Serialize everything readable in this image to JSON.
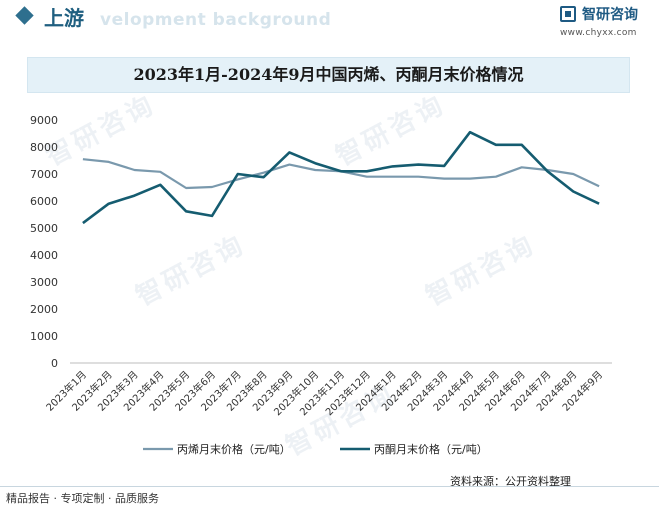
{
  "header": {
    "title": "上游",
    "bg_text": "velopment background"
  },
  "logo": {
    "name": "智研咨询",
    "url": "www.chyxx.com"
  },
  "watermark_text": "智研咨询",
  "chart_data": {
    "type": "line",
    "title": "2023年1月-2024年9月中国丙烯、丙酮月末价格情况",
    "categories": [
      "2023年1月",
      "2023年2月",
      "2023年3月",
      "2023年4月",
      "2023年5月",
      "2023年6月",
      "2023年7月",
      "2023年8月",
      "2023年9月",
      "2023年10月",
      "2023年11月",
      "2023年12月",
      "2024年1月",
      "2024年2月",
      "2024年3月",
      "2024年4月",
      "2024年5月",
      "2024年6月",
      "2024年7月",
      "2024年8月",
      "2024年9月"
    ],
    "ylim": [
      0,
      9000
    ],
    "yticks": [
      0,
      1000,
      2000,
      3000,
      4000,
      5000,
      6000,
      7000,
      8000,
      9000
    ],
    "series": [
      {
        "name": "丙烯月末价格（元/吨）",
        "color": "#7a99ad",
        "values": [
          7550,
          7450,
          7150,
          7080,
          6480,
          6520,
          6800,
          7050,
          7350,
          7150,
          7100,
          6900,
          6900,
          6900,
          6830,
          6830,
          6900,
          7250,
          7150,
          7000,
          6550
        ]
      },
      {
        "name": "丙酮月末价格（元/吨）",
        "color": "#155c70",
        "values": [
          5180,
          5900,
          6200,
          6600,
          5620,
          5450,
          7000,
          6880,
          7800,
          7400,
          7100,
          7100,
          7280,
          7350,
          7300,
          8550,
          8080,
          8080,
          7100,
          6350,
          5900
        ]
      }
    ],
    "legend_position": "bottom"
  },
  "source": "资料来源：公开资料整理",
  "footer": "精品报告 · 专项定制 · 品质服务"
}
